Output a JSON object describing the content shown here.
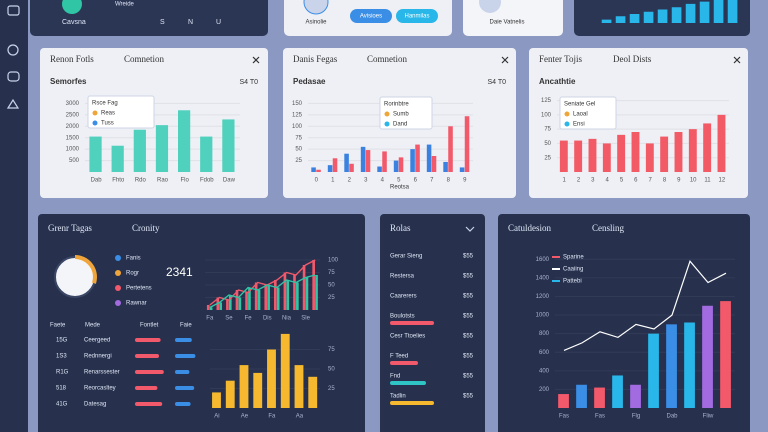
{
  "top_cards": {
    "a": {
      "title": "Cavsna",
      "sub": "Wreide",
      "keys": [
        "S",
        "N",
        "U"
      ]
    },
    "b": {
      "title": "Asinolie",
      "buttons": [
        "Avisioes",
        "Hanmilas"
      ]
    },
    "c": {
      "title": "Daie Vatnelis"
    },
    "d": {
      "chart": {
        "type": "bar",
        "values": [
          3,
          6,
          8,
          10,
          12,
          14,
          17,
          19,
          21,
          23
        ],
        "color": "#29b6e8",
        "ylim": [
          0,
          24
        ]
      }
    }
  },
  "panels": [
    {
      "title": "Renon Fotls",
      "tab": "Comnetion",
      "heading": "Semorfes",
      "side": "S4 T0",
      "legend": {
        "title": "Rsce Fag",
        "items": [
          {
            "label": "Reas",
            "color": "#f0a53a"
          },
          {
            "label": "Tuss",
            "color": "#3b8ee6"
          }
        ]
      },
      "chart": {
        "type": "bar",
        "categories": [
          "Dab",
          "Fhto",
          "Rdo",
          "Rao",
          "Flo",
          "Fdob",
          "Daw"
        ],
        "values": [
          1550,
          1150,
          1850,
          2050,
          2700,
          1550,
          2300
        ],
        "color": "#4fd1bd",
        "ylim": [
          0,
          3500
        ],
        "yticks": [
          500,
          1000,
          1500,
          2000,
          2500,
          3000
        ]
      }
    },
    {
      "title": "Danis Fegas",
      "tab": "Comnetion",
      "heading": "Pedasae",
      "side": "S4 T0",
      "footer": "Reotsa",
      "legend": {
        "title": "Rorinbtre",
        "items": [
          {
            "label": "Sumb",
            "color": "#f0a53a"
          },
          {
            "label": "Dand",
            "color": "#29b6e8"
          }
        ]
      },
      "chart": {
        "type": "bar",
        "categories": [
          "0",
          "1",
          "2",
          "3",
          "4",
          "5",
          "6",
          "7",
          "8",
          "9"
        ],
        "series": [
          {
            "color": "#3b82e0",
            "values": [
              10,
              15,
              40,
              55,
              12,
              25,
              50,
              60,
              22,
              10
            ]
          },
          {
            "color": "#f2596a",
            "values": [
              5,
              30,
              18,
              48,
              45,
              32,
              60,
              35,
              100,
              122
            ]
          }
        ],
        "ylim": [
          0,
          175
        ],
        "yticks": [
          25,
          50,
          75,
          100,
          125,
          150
        ]
      }
    },
    {
      "title": "Fenter Tojis",
      "tab": "Deol Dists",
      "heading": "Ancathtie",
      "legend": {
        "title": "Seniate Gel",
        "items": [
          {
            "label": "Laoal",
            "color": "#f0a53a"
          },
          {
            "label": "Ensi",
            "color": "#29b6e8"
          }
        ]
      },
      "chart": {
        "type": "bar",
        "categories": [
          "1",
          "2",
          "3",
          "4",
          "5",
          "6",
          "7",
          "8",
          "9",
          "10",
          "11",
          "12"
        ],
        "values": [
          55,
          55,
          58,
          50,
          65,
          70,
          50,
          62,
          70,
          75,
          85,
          100
        ],
        "color": "#f25b66",
        "ylim": [
          0,
          140
        ],
        "yticks": [
          25,
          50,
          75,
          100,
          125
        ]
      }
    },
    {
      "title": "Grenr Tagas",
      "tab": "Cronity",
      "big": "2341",
      "gauge": {
        "value": 30,
        "ylim": [
          0,
          100
        ]
      },
      "legend": {
        "items": [
          {
            "label": "Fanis",
            "color": "#3b8ee6"
          },
          {
            "label": "Rogr",
            "color": "#f0a53a"
          },
          {
            "label": "Pertetens",
            "color": "#f2596a"
          },
          {
            "label": "Rawnar",
            "color": "#a36be0"
          }
        ]
      },
      "line": {
        "type": "line",
        "categories": [
          "Fa",
          null,
          "Se",
          null,
          "Fe",
          null,
          "Dis",
          null,
          "Nia",
          null,
          "Sle",
          null
        ],
        "series": [
          {
            "color": "#f2596a",
            "values": [
              10,
              25,
              20,
              40,
              35,
              55,
              50,
              60,
              75,
              70,
              90,
              100
            ]
          },
          {
            "color": "#2fc5a5",
            "values": [
              5,
              15,
              30,
              25,
              45,
              40,
              50,
              45,
              60,
              55,
              65,
              70
            ]
          }
        ],
        "ylim": [
          0,
          110
        ],
        "yticks": [
          25,
          50,
          75,
          100
        ]
      },
      "table": {
        "header": [
          "Faete",
          "Mede",
          "Fontlet",
          "Faie"
        ],
        "bar_lim": [
          0,
          100
        ],
        "rows": [
          {
            "id": "15G",
            "name": "Ceergeed",
            "a": 80,
            "b": 70
          },
          {
            "id": "1S3",
            "name": "Rednnergi",
            "a": 75,
            "b": 85
          },
          {
            "id": "R1G",
            "name": "Renarssester",
            "a": 90,
            "b": 60
          },
          {
            "id": "518",
            "name": "Reorcasltey",
            "a": 70,
            "b": 80
          },
          {
            "id": "41G",
            "name": "Datesag",
            "a": 85,
            "b": 65
          }
        ]
      },
      "bars": {
        "type": "bar",
        "categories": [
          "Ai",
          null,
          "Ae",
          null,
          "Fa",
          null,
          "Aa",
          null
        ],
        "values": [
          20,
          35,
          55,
          45,
          75,
          95,
          55,
          40
        ],
        "color": "#f5b82e",
        "ylim": [
          0,
          100
        ],
        "yticks": [
          25,
          50,
          75
        ]
      }
    },
    {
      "title": "Rolas",
      "bar_lim": [
        0,
        100
      ],
      "rows": [
        {
          "label": "Gerar Sieng",
          "value": "$55"
        },
        {
          "label": "Restersa",
          "value": "$55"
        },
        {
          "label": "Caarerers",
          "value": "$55"
        },
        {
          "label": "Boulotsts",
          "value": "$55",
          "bar": {
            "value": 55,
            "color": "#f2596a"
          }
        },
        {
          "label": "Cesr Ttoelies",
          "value": "$55"
        },
        {
          "label": "F Teed",
          "value": "$55",
          "bar": {
            "value": 35,
            "color": "#f2596a"
          }
        },
        {
          "label": "Fnd",
          "value": "$55",
          "bar": {
            "value": 45,
            "color": "#2fc5c5"
          }
        },
        {
          "label": "Tadlin",
          "value": "$55",
          "bar": {
            "value": 55,
            "color": "#f5b82e"
          }
        }
      ]
    },
    {
      "title": "Catuldesion",
      "tab": "Censling",
      "legend": {
        "items": [
          {
            "label": "Sparine",
            "color": "#f2596a"
          },
          {
            "label": "Caaiing",
            "color": "#ffffff"
          },
          {
            "label": "Pattebi",
            "color": "#29b6e8"
          }
        ]
      },
      "chart": {
        "type": "bar",
        "categories": [
          "Fas",
          null,
          "Fas",
          null,
          "Flg",
          null,
          "Dab",
          null,
          "Fliw",
          null
        ],
        "series": [
          {
            "colors": [
              "#f2596a",
              "#3b8ee6",
              "#f2596a",
              "#29b6e8",
              "#a36be0",
              "#29b6e8",
              "#3b8ee6",
              "#29b6e8",
              "#a36be0",
              "#f2596a"
            ],
            "values": [
              150,
              250,
              220,
              350,
              250,
              800,
              900,
              920,
              1100,
              1150
            ]
          }
        ],
        "line": {
          "color": "#ffffff",
          "values": [
            620,
            700,
            820,
            760,
            900,
            850,
            1000,
            1580,
            1350,
            1450
          ]
        },
        "ylim": [
          0,
          1700
        ],
        "yticks": [
          200,
          400,
          600,
          800,
          1000,
          1200,
          1400,
          1600
        ]
      }
    }
  ]
}
